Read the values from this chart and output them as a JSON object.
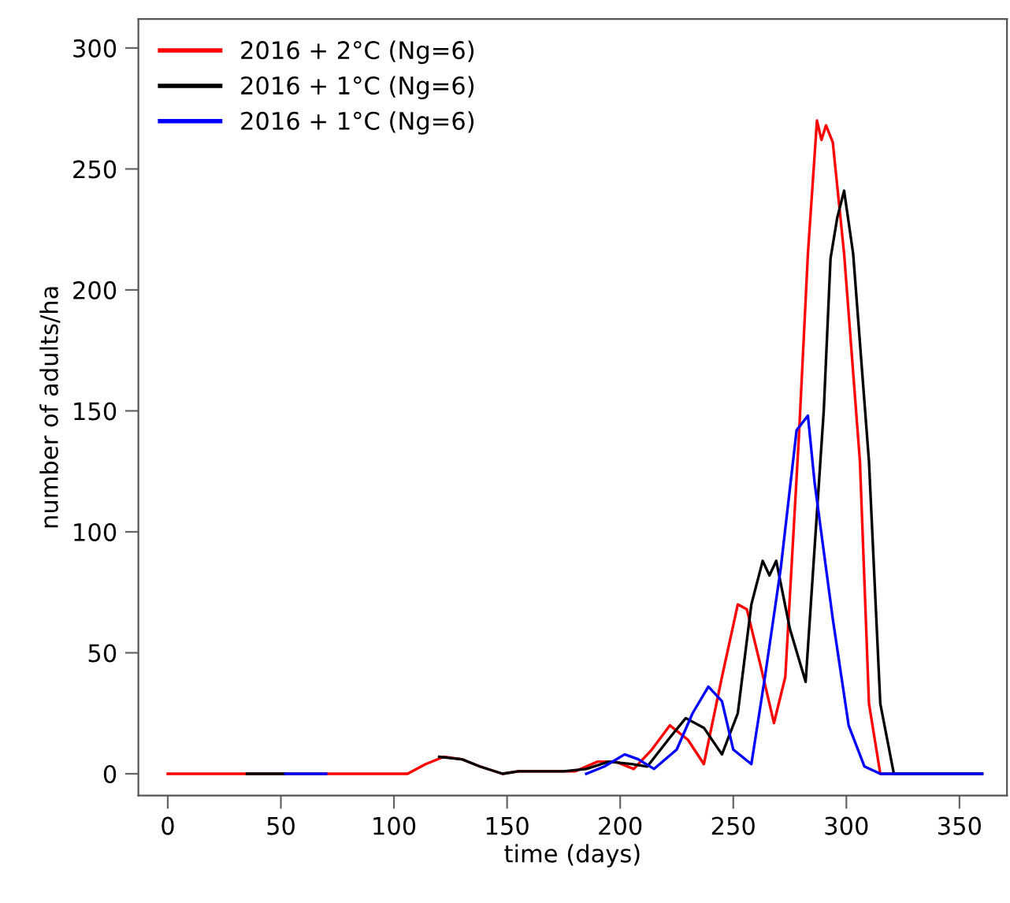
{
  "chart_data": {
    "type": "line",
    "xlabel": "time (days)",
    "ylabel": "number of adults/ha",
    "xlim": [
      -13,
      371
    ],
    "xticks": [
      0,
      50,
      100,
      150,
      200,
      250,
      300,
      350
    ],
    "ylim": [
      -9,
      312
    ],
    "yticks": [
      0,
      50,
      100,
      150,
      200,
      250,
      300
    ],
    "grid": false,
    "legend": "top left",
    "marker": "none",
    "line_style": "solid",
    "series": [
      {
        "name": "2016 + 2°C (Ng=6)",
        "color": "#ff0000",
        "x": [
          0,
          106,
          114,
          122,
          130,
          138,
          148,
          155,
          180,
          190,
          198,
          206,
          214,
          222,
          230,
          237,
          245,
          252,
          256,
          262,
          268,
          273,
          279,
          283,
          287,
          289,
          291,
          294,
          299,
          306,
          310,
          315,
          360
        ],
        "values": [
          0,
          0,
          4,
          7,
          6,
          3,
          0,
          1,
          1,
          5,
          5,
          2,
          10,
          20,
          14,
          4,
          40,
          70,
          68,
          45,
          21,
          40,
          139,
          215,
          270,
          262,
          268,
          261,
          215,
          129,
          29,
          0,
          0
        ]
      },
      {
        "name": "2016 + 1°C (Ng=6)",
        "color": "#000000",
        "x": [
          35,
          52,
          86,
          120,
          130,
          138,
          148,
          155,
          175,
          185,
          195,
          205,
          212,
          222,
          229,
          237,
          245,
          252,
          258,
          263,
          266,
          269,
          275,
          282,
          285,
          290,
          293,
          296,
          299,
          303,
          310,
          315,
          321,
          360
        ],
        "values": [
          0,
          0,
          null,
          7,
          6,
          3,
          0,
          1,
          1,
          2,
          5,
          4,
          3,
          15,
          23,
          19,
          8,
          25,
          70,
          88,
          82,
          88,
          60,
          38,
          80,
          150,
          213,
          230,
          241,
          215,
          129,
          29,
          0,
          0
        ]
      },
      {
        "name": "2016 + 1°C (Ng=6)",
        "color": "#0000ff",
        "x": [
          52,
          70,
          120,
          185,
          193,
          202,
          208,
          215,
          225,
          232,
          239,
          245,
          250,
          258,
          264,
          271,
          278,
          283,
          286,
          290,
          294,
          301,
          308,
          315,
          360
        ],
        "values": [
          0,
          0,
          null,
          0,
          3,
          8,
          6,
          2,
          10,
          25,
          36,
          30,
          10,
          4,
          40,
          85,
          142,
          148,
          120,
          92,
          64,
          20,
          3,
          0,
          0
        ]
      }
    ]
  }
}
